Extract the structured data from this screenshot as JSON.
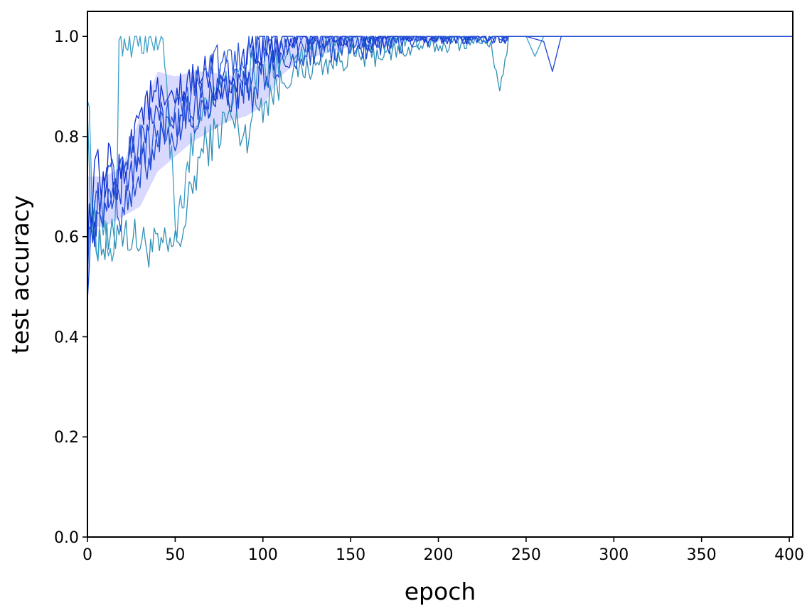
{
  "chart_data": {
    "type": "line",
    "title": "",
    "xlabel": "epoch",
    "ylabel": "test accuracy",
    "xlim": [
      0,
      402
    ],
    "ylim": [
      0,
      1.05
    ],
    "xticks": [
      0,
      50,
      100,
      150,
      200,
      250,
      300,
      350,
      400
    ],
    "xtick_labels": [
      "0",
      "50",
      "100",
      "150",
      "200",
      "250",
      "300",
      "350",
      "400"
    ],
    "yticks": [
      0.0,
      0.2,
      0.4,
      0.6,
      0.8,
      1.0
    ],
    "ytick_labels": [
      "0.0",
      "0.2",
      "0.4",
      "0.6",
      "0.8",
      "1.0"
    ],
    "grid": false,
    "legend": "none",
    "band": {
      "color": "#b9b9ff",
      "x": [
        0,
        10,
        20,
        30,
        40,
        50,
        60,
        70,
        80,
        90,
        100,
        110,
        120,
        130,
        140,
        150,
        160,
        170,
        180,
        190,
        200,
        210,
        220,
        230,
        240,
        250,
        402
      ],
      "upper": [
        0.72,
        0.72,
        0.74,
        0.84,
        0.93,
        0.92,
        0.93,
        0.93,
        0.92,
        0.93,
        0.95,
        0.99,
        1.0,
        1.0,
        1.0,
        1.0,
        1.0,
        1.0,
        1.0,
        1.0,
        1.0,
        1.0,
        1.0,
        1.0,
        1.0,
        1.0,
        1.0
      ],
      "lower": [
        0.62,
        0.62,
        0.64,
        0.66,
        0.73,
        0.76,
        0.79,
        0.81,
        0.83,
        0.84,
        0.86,
        0.92,
        0.95,
        0.96,
        0.97,
        0.98,
        0.98,
        0.98,
        0.99,
        0.99,
        0.99,
        1.0,
        1.0,
        1.0,
        1.0,
        1.0,
        1.0
      ]
    },
    "series": [
      {
        "color": "#2f8fb5",
        "x": [
          0,
          2,
          5,
          10,
          15,
          18,
          20,
          25,
          30,
          35,
          40,
          45,
          50,
          55,
          60,
          65,
          70,
          75,
          80,
          85,
          90,
          95,
          100,
          105,
          110,
          115,
          120,
          130,
          140,
          150,
          160,
          170,
          180,
          190,
          200,
          210,
          220,
          230,
          235,
          240,
          250,
          260,
          270,
          280,
          290,
          300,
          402
        ],
        "y": [
          0.9,
          0.62,
          0.6,
          0.58,
          0.59,
          0.64,
          0.61,
          0.6,
          0.59,
          0.58,
          0.575,
          0.575,
          0.58,
          0.62,
          0.7,
          0.77,
          0.79,
          0.81,
          0.84,
          0.82,
          0.8,
          0.86,
          0.87,
          0.89,
          0.91,
          0.92,
          0.93,
          0.94,
          0.95,
          0.96,
          0.96,
          0.97,
          0.97,
          0.98,
          0.98,
          0.985,
          0.99,
          0.99,
          0.88,
          1.0,
          1.0,
          1.0,
          1.0,
          1.0,
          1.0,
          1.0,
          1.0
        ]
      },
      {
        "color": "#3a9fc8",
        "x": [
          0,
          3,
          6,
          10,
          14,
          16,
          18,
          20,
          22,
          25,
          28,
          30,
          34,
          38,
          40,
          43,
          45,
          48,
          50,
          55,
          60,
          65,
          70,
          75,
          80,
          85,
          90,
          95,
          100,
          105,
          110,
          120,
          130,
          140,
          150,
          160,
          170,
          180,
          190,
          200,
          210,
          220,
          230,
          240,
          250,
          255,
          260,
          270,
          280,
          290,
          402
        ],
        "y": [
          0.92,
          0.64,
          0.6,
          0.59,
          0.58,
          0.62,
          0.97,
          1.0,
          1.0,
          1.0,
          0.99,
          1.0,
          0.97,
          1.0,
          1.0,
          0.98,
          0.9,
          0.74,
          0.6,
          0.69,
          0.79,
          0.86,
          0.88,
          0.9,
          0.89,
          0.9,
          0.91,
          0.93,
          0.94,
          0.95,
          0.96,
          0.97,
          0.98,
          0.985,
          0.99,
          0.99,
          0.99,
          0.995,
          0.99,
          1.0,
          1.0,
          1.0,
          1.0,
          1.0,
          1.0,
          0.96,
          1.0,
          1.0,
          1.0,
          1.0,
          1.0
        ]
      },
      {
        "color": "#1a3fd6",
        "x": [
          0,
          3,
          6,
          10,
          15,
          20,
          25,
          30,
          35,
          40,
          45,
          50,
          55,
          60,
          65,
          70,
          75,
          80,
          85,
          90,
          95,
          100,
          105,
          110,
          115,
          120,
          130,
          140,
          150,
          160,
          170,
          180,
          190,
          200,
          210,
          220,
          230,
          240,
          250,
          260,
          265,
          270,
          280,
          290,
          402
        ],
        "y": [
          0.52,
          0.62,
          0.66,
          0.7,
          0.69,
          0.71,
          0.72,
          0.78,
          0.82,
          0.85,
          0.82,
          0.84,
          0.86,
          0.86,
          0.88,
          0.87,
          0.89,
          0.9,
          0.89,
          0.91,
          0.92,
          0.95,
          0.97,
          0.98,
          0.99,
          0.99,
          0.995,
          1.0,
          1.0,
          0.99,
          1.0,
          1.0,
          1.0,
          1.0,
          1.0,
          1.0,
          1.0,
          1.0,
          1.0,
          0.99,
          0.93,
          1.0,
          1.0,
          1.0,
          1.0
        ]
      },
      {
        "color": "#0f2fcf",
        "x": [
          0,
          3,
          6,
          9,
          12,
          15,
          20,
          25,
          30,
          35,
          40,
          45,
          50,
          55,
          60,
          65,
          70,
          75,
          80,
          85,
          90,
          95,
          100,
          105,
          110,
          115,
          120,
          130,
          140,
          150,
          160,
          170,
          180,
          190,
          200,
          210,
          220,
          230,
          240,
          250,
          402
        ],
        "y": [
          0.6,
          0.69,
          0.73,
          0.68,
          0.74,
          0.71,
          0.73,
          0.8,
          0.85,
          0.87,
          0.88,
          0.85,
          0.87,
          0.89,
          0.91,
          0.92,
          0.93,
          0.9,
          0.92,
          0.93,
          0.94,
          0.96,
          0.98,
          0.99,
          1.0,
          1.0,
          1.0,
          1.0,
          1.0,
          1.0,
          1.0,
          1.0,
          1.0,
          1.0,
          1.0,
          1.0,
          1.0,
          1.0,
          1.0,
          1.0,
          1.0
        ]
      },
      {
        "color": "#2a58d8",
        "x": [
          0,
          4,
          8,
          12,
          16,
          20,
          25,
          30,
          35,
          40,
          45,
          50,
          55,
          60,
          65,
          70,
          75,
          80,
          85,
          90,
          95,
          100,
          105,
          110,
          115,
          120,
          125,
          130,
          140,
          150,
          160,
          170,
          180,
          190,
          200,
          210,
          220,
          230,
          240,
          250,
          402
        ],
        "y": [
          0.62,
          0.66,
          0.63,
          0.71,
          0.72,
          0.74,
          0.76,
          0.79,
          0.78,
          0.8,
          0.83,
          0.88,
          0.86,
          0.9,
          0.92,
          0.95,
          0.94,
          0.96,
          0.97,
          0.98,
          0.98,
          0.99,
          1.0,
          0.99,
          1.0,
          1.0,
          0.98,
          1.0,
          1.0,
          1.0,
          1.0,
          1.0,
          1.0,
          1.0,
          1.0,
          1.0,
          1.0,
          1.0,
          1.0,
          1.0,
          1.0
        ]
      },
      {
        "color": "#1d4ad2",
        "x": [
          0,
          3,
          7,
          11,
          15,
          20,
          25,
          30,
          35,
          40,
          45,
          50,
          55,
          60,
          65,
          70,
          75,
          80,
          85,
          90,
          95,
          100,
          105,
          110,
          115,
          120,
          130,
          140,
          150,
          160,
          170,
          180,
          190,
          200,
          210,
          220,
          230,
          240,
          250,
          402
        ],
        "y": [
          0.55,
          0.64,
          0.6,
          0.67,
          0.7,
          0.65,
          0.68,
          0.72,
          0.76,
          0.8,
          0.77,
          0.8,
          0.84,
          0.83,
          0.86,
          0.88,
          0.87,
          0.89,
          0.88,
          0.9,
          0.89,
          0.92,
          0.93,
          0.95,
          0.94,
          0.96,
          0.97,
          0.97,
          0.98,
          0.98,
          0.99,
          0.99,
          0.99,
          1.0,
          1.0,
          1.0,
          1.0,
          1.0,
          1.0,
          1.0
        ]
      }
    ]
  }
}
